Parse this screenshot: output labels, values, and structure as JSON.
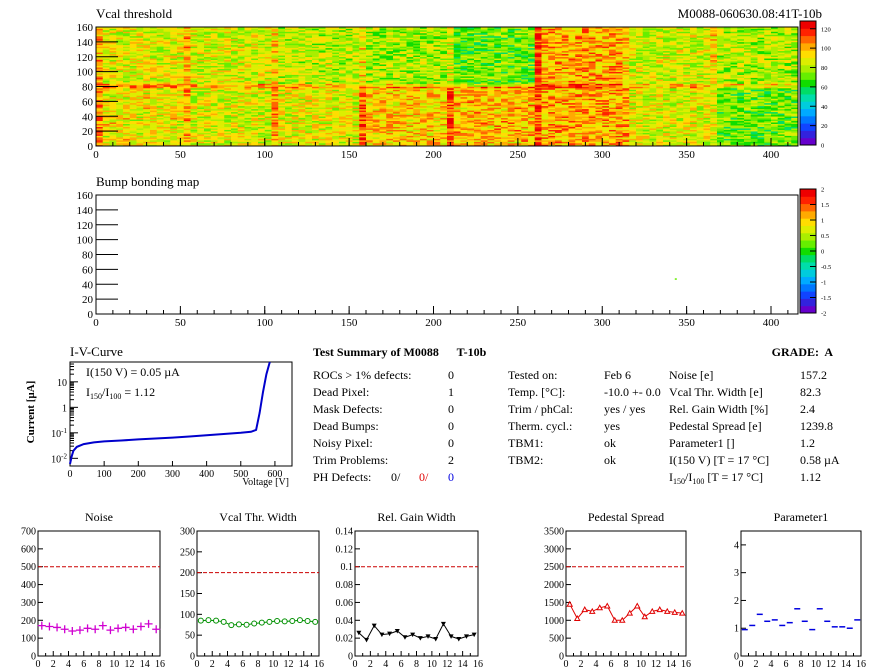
{
  "header": {
    "title": "Vcal threshold",
    "module_id": "M0088-060630.08:41T-10b"
  },
  "chart_data": [
    {
      "type": "heatmap",
      "title": "Vcal threshold",
      "x_range": [
        0,
        416
      ],
      "y_range": [
        0,
        160
      ],
      "x_ticks": [
        "0",
        "50",
        "100",
        "150",
        "200",
        "250",
        "300",
        "350",
        "400"
      ],
      "y_ticks": [
        "0",
        "20",
        "40",
        "60",
        "80",
        "100",
        "120",
        "140",
        "160"
      ],
      "z_range": [
        0,
        128
      ],
      "z_ticks": [
        "0",
        "20",
        "40",
        "60",
        "80",
        "100",
        "120"
      ],
      "roc_mean": {
        "top_row": [
          88,
          86,
          82,
          78,
          72,
          100,
          84,
          80
        ],
        "bottom_row": [
          90,
          86,
          88,
          96,
          98,
          100,
          88,
          72
        ]
      }
    },
    {
      "type": "heatmap",
      "title": "Bump bonding map",
      "x_range": [
        0,
        416
      ],
      "y_range": [
        0,
        160
      ],
      "x_ticks": [
        "0",
        "50",
        "100",
        "150",
        "200",
        "250",
        "300",
        "350",
        "400"
      ],
      "y_ticks": [
        "0",
        "20",
        "40",
        "60",
        "80",
        "100",
        "120",
        "140",
        "160"
      ],
      "z_range": [
        -2,
        2
      ],
      "z_ticks": [
        "-2",
        "-1.5",
        "-1",
        "-0.5",
        "0",
        "0.5",
        "1",
        "1.5",
        "2"
      ],
      "points": [
        {
          "x": 343,
          "y": 48,
          "z": 0.2
        }
      ]
    },
    {
      "type": "line",
      "title": "I-V-Curve",
      "xlabel": "Voltage [V]",
      "ylabel": "Current [µA]",
      "x_range": [
        0,
        650
      ],
      "y_range_log": [
        0.005,
        60
      ],
      "x_ticks": [
        "0",
        "100",
        "200",
        "300",
        "400",
        "500",
        "600"
      ],
      "y_ticks": [
        "10^{-2}",
        "10^{-1}",
        "1",
        "10"
      ],
      "annot1": "I(150 V) = 0.05 µA",
      "annot2_base": "I",
      "annot2_sub1": "150",
      "annot2_sep": "/I",
      "annot2_sub2": "100",
      "annot2_val": "=  1.12",
      "x": [
        0,
        5,
        10,
        20,
        40,
        70,
        100,
        150,
        200,
        250,
        300,
        350,
        400,
        450,
        500,
        530,
        545,
        555,
        565,
        575,
        585
      ],
      "y": [
        0.006,
        0.012,
        0.02,
        0.028,
        0.036,
        0.042,
        0.046,
        0.05,
        0.055,
        0.06,
        0.065,
        0.072,
        0.08,
        0.09,
        0.1,
        0.11,
        0.13,
        0.6,
        4,
        20,
        60
      ]
    },
    {
      "type": "scatter",
      "title": "Noise",
      "x_range": [
        0,
        16
      ],
      "y_range": [
        0,
        700
      ],
      "x_ticks": [
        "0",
        "2",
        "4",
        "6",
        "8",
        "10",
        "12",
        "14",
        "16"
      ],
      "y_ticks": [
        "0",
        "100",
        "200",
        "300",
        "400",
        "500",
        "600",
        "700"
      ],
      "threshold": 500,
      "values": [
        170,
        165,
        160,
        150,
        140,
        145,
        155,
        150,
        170,
        145,
        155,
        160,
        150,
        165,
        180,
        150
      ],
      "color": "#d000d0",
      "marker": "plus"
    },
    {
      "type": "line",
      "title": "Vcal Thr. Width",
      "x_range": [
        0,
        16
      ],
      "y_range": [
        0,
        300
      ],
      "x_ticks": [
        "0",
        "2",
        "4",
        "6",
        "8",
        "10",
        "12",
        "14",
        "16"
      ],
      "y_ticks": [
        "0",
        "50",
        "100",
        "150",
        "200",
        "250",
        "300"
      ],
      "threshold": 200,
      "values": [
        85,
        86,
        85,
        82,
        74,
        76,
        75,
        78,
        80,
        82,
        84,
        83,
        84,
        86,
        84,
        82
      ],
      "color": "#009000",
      "marker": "circle"
    },
    {
      "type": "line",
      "title": "Rel. Gain Width",
      "x_range": [
        0,
        16
      ],
      "y_range": [
        0,
        0.14
      ],
      "x_ticks": [
        "0",
        "2",
        "4",
        "6",
        "8",
        "10",
        "12",
        "14",
        "16"
      ],
      "y_ticks": [
        "0",
        "0.02",
        "0.04",
        "0.06",
        "0.08",
        "0.1",
        "0.12",
        "0.14"
      ],
      "threshold": 0.1,
      "values": [
        0.026,
        0.018,
        0.034,
        0.024,
        0.025,
        0.028,
        0.021,
        0.024,
        0.02,
        0.022,
        0.019,
        0.036,
        0.022,
        0.019,
        0.022,
        0.024
      ],
      "color": "#000000",
      "marker": "triangle-down"
    },
    {
      "type": "line",
      "title": "Pedestal Spread",
      "x_range": [
        0,
        16
      ],
      "y_range": [
        0,
        3500
      ],
      "x_ticks": [
        "0",
        "2",
        "4",
        "6",
        "8",
        "10",
        "12",
        "14",
        "16"
      ],
      "y_ticks": [
        "0",
        "500",
        "1000",
        "1500",
        "2000",
        "2500",
        "3000",
        "3500"
      ],
      "threshold": 2500,
      "values": [
        1450,
        1050,
        1300,
        1250,
        1350,
        1400,
        1000,
        1000,
        1200,
        1400,
        1100,
        1250,
        1300,
        1250,
        1220,
        1200
      ],
      "color": "#e00000",
      "marker": "triangle-up"
    },
    {
      "type": "scatter",
      "title": "Parameter1",
      "x_range": [
        0,
        16
      ],
      "y_range": [
        0,
        4.5
      ],
      "x_ticks": [
        "0",
        "2",
        "4",
        "6",
        "8",
        "10",
        "12",
        "14",
        "16"
      ],
      "y_ticks": [
        "0",
        "1",
        "2",
        "3",
        "4"
      ],
      "values": [
        0.95,
        1.1,
        1.5,
        1.25,
        1.3,
        1.1,
        1.2,
        1.7,
        1.25,
        0.95,
        1.7,
        1.25,
        1.05,
        1.05,
        1.0,
        1.3
      ],
      "color": "#0000e0",
      "marker": "dash"
    }
  ],
  "summary": {
    "title": "Test Summary of M0088      T-10b",
    "grade": "GRADE:  A",
    "rows": [
      {
        "label": "ROCs > 1% defects:",
        "value": "0"
      },
      {
        "label": "Dead Pixel:",
        "value": "1"
      },
      {
        "label": "Mask Defects:",
        "value": "0"
      },
      {
        "label": "Dead Bumps:",
        "value": "0"
      },
      {
        "label": "Noisy Pixel:",
        "value": "0"
      },
      {
        "label": "Trim Problems:",
        "value": "2"
      }
    ],
    "ph_label": "PH Defects:",
    "ph_values": [
      {
        "text": "0/",
        "color": "#000000"
      },
      {
        "text": "0/",
        "color": "#e00000"
      },
      {
        "text": "0",
        "color": "#0000e0"
      }
    ],
    "tests": [
      {
        "label": "Tested on:",
        "value": "Feb 6"
      },
      {
        "label": "Temp. [°C]:",
        "value": "-10.0 +- 0.0"
      },
      {
        "label": "Trim / phCal:",
        "value": "yes / yes"
      },
      {
        "label": "Therm. cycl.:",
        "value": "yes"
      },
      {
        "label": "TBM1:",
        "value": "ok"
      },
      {
        "label": "TBM2:",
        "value": "ok"
      }
    ],
    "params": [
      {
        "label": "Noise [e]",
        "value": "157.2"
      },
      {
        "label": "Vcal Thr. Width [e]",
        "value": "82.3"
      },
      {
        "label": "Rel. Gain Width [%]",
        "value": "2.4"
      },
      {
        "label": "Pedestal Spread [e]",
        "value": "1239.8"
      },
      {
        "label": "Parameter1 []",
        "value": "1.2"
      },
      {
        "label": "I(150 V) [T = 17 °C]",
        "value": "0.58 µA"
      }
    ],
    "ratio_label_pre": "I",
    "ratio_sub1": "150",
    "ratio_sep": "/I",
    "ratio_sub2": "100",
    "ratio_label_post": " [T = 17 °C]",
    "ratio_value": "1.12"
  }
}
